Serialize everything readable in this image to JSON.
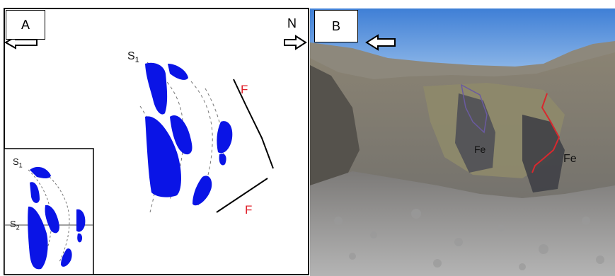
{
  "panel_a": {
    "label": "A",
    "north_label": "N",
    "layer_main": "S1",
    "fault_upper": "F",
    "fault_lower": "F",
    "inset": {
      "layer_top": "S1",
      "layer_axis": "S2"
    }
  },
  "panel_b": {
    "label": "B",
    "ore_left": "Fe",
    "ore_right": "Fe"
  },
  "colors": {
    "ore_body": "#0a14e6",
    "fault_label": "#e0202a",
    "fault_trace_photo": "#d8282e",
    "sky": "#4f8fde"
  }
}
